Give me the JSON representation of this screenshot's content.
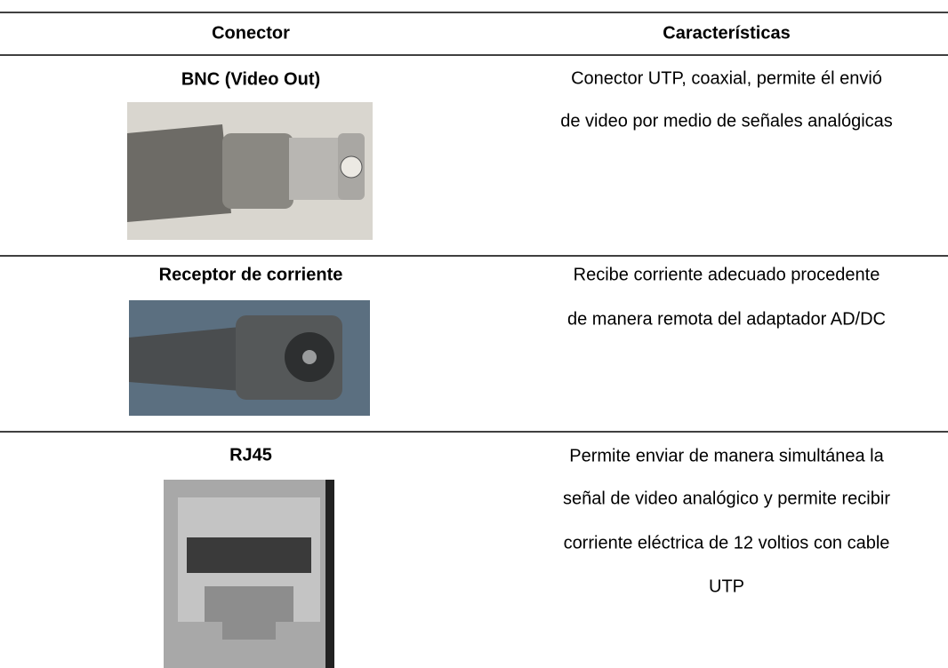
{
  "table": {
    "headers": [
      "Conector",
      "Características"
    ],
    "rows": [
      {
        "connector": "BNC (Video Out)",
        "description": [
          "Conector UTP, coaxial, permite él envió",
          "de video por medio de señales analógicas"
        ]
      },
      {
        "connector": "Receptor de corriente",
        "description": [
          "Recibe corriente adecuado procedente",
          "de manera remota del adaptador AD/DC"
        ]
      },
      {
        "connector": "RJ45",
        "description": [
          "Permite enviar de manera simultánea la",
          "señal de video analógico y permite recibir",
          "corriente eléctrica de 12 voltios con cable",
          "UTP"
        ]
      }
    ]
  }
}
